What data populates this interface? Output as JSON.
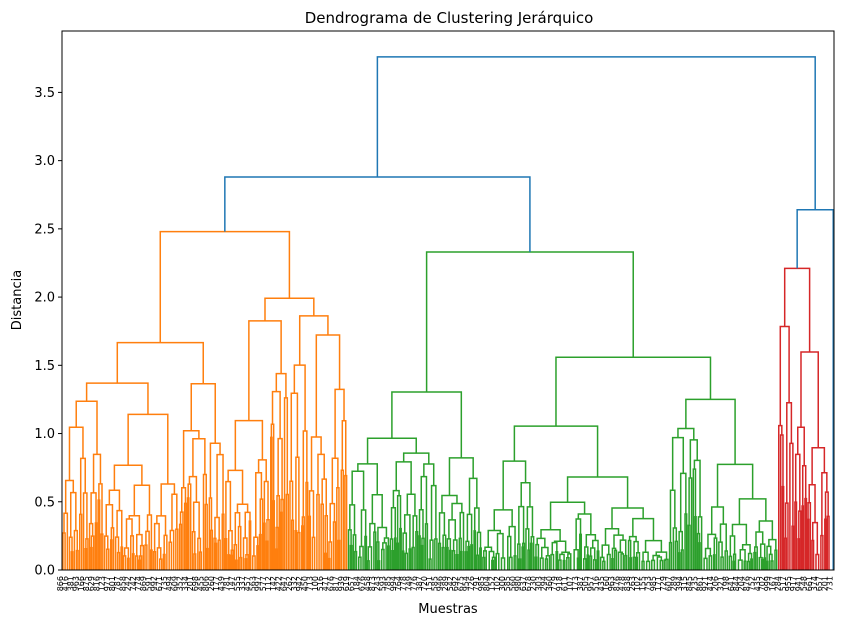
{
  "chart_data": {
    "type": "dendrogram",
    "title": "Dendrograma de Clustering Jerárquico",
    "xlabel": "Muestras",
    "ylabel": "Distancia",
    "ylim": [
      0,
      3.95
    ],
    "yticks": [
      0.0,
      0.5,
      1.0,
      1.5,
      2.0,
      2.5,
      3.0,
      3.5
    ],
    "ytick_labels": [
      "0.0",
      "0.5",
      "1.0",
      "1.5",
      "2.0",
      "2.5",
      "3.0",
      "3.5"
    ],
    "grid": false,
    "x_tick_labels_note": "dense overlapping sample index labels",
    "colors": {
      "C0": "#1f77b4",
      "C1": "#ff7f0e",
      "C2": "#2ca02c",
      "C3": "#d62728"
    },
    "clusters": [
      {
        "color": "C1",
        "merge_height": 2.48,
        "x_range_fraction": [
          0.0,
          0.37
        ]
      },
      {
        "color": "C2",
        "merge_height": 2.33,
        "x_range_fraction": [
          0.37,
          0.927
        ]
      },
      {
        "color": "C3",
        "merge_height": 2.21,
        "x_range_fraction": [
          0.927,
          0.995
        ]
      }
    ],
    "top_links": [
      {
        "color": "C0",
        "height": 2.88,
        "joins": [
          "cluster C1",
          "cluster C2"
        ]
      },
      {
        "color": "C0",
        "height": 2.64,
        "joins": [
          "cluster C3",
          "outlier"
        ]
      },
      {
        "color": "C0",
        "height": 3.76,
        "joins": [
          "C1+C2",
          "C3+outlier"
        ]
      }
    ]
  }
}
